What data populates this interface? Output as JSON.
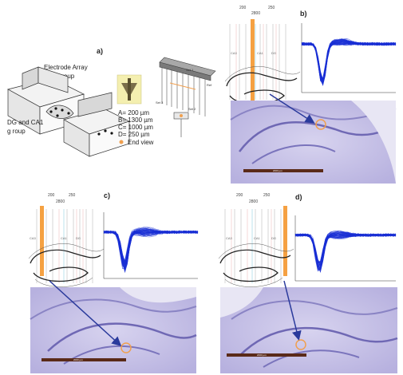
{
  "panels": {
    "a": {
      "label": "a)",
      "group_ca3": [
        "Electrode Array",
        "CA3 group"
      ],
      "group_dg": [
        "DG and CA1",
        "g roup"
      ],
      "legend": [
        "A= 200 µm",
        "B= 1300 µm",
        "C= 1000 µm",
        "D= 250 µm",
        "End view"
      ],
      "array_labels": [
        "Set 1",
        "Set 2",
        "Set 3",
        "Ref"
      ]
    },
    "b": {
      "label": "b)",
      "ruler_top": [
        "200",
        "250"
      ],
      "ruler_mid": "2800",
      "region_labels": [
        "CA3",
        "CA1",
        "DG"
      ],
      "scalebar": "2000 µm"
    },
    "c": {
      "label": "c)",
      "ruler_top": [
        "200",
        "250"
      ],
      "ruler_mid": "2800",
      "region_labels": [
        "CA3",
        "CA1",
        "DG"
      ],
      "scalebar": "2000 µm"
    },
    "d": {
      "label": "d)",
      "ruler_top": [
        "200",
        "250"
      ],
      "ruler_mid": "2800",
      "region_labels": [
        "CA3",
        "CA1",
        "DG"
      ],
      "scalebar": "2000 µm"
    }
  },
  "colors": {
    "waveform": "#1a2fd6",
    "electrode_highlight": "#f5a142",
    "arrow": "#2a3a9c",
    "tissue": "#c9c5e8",
    "tissue_dark": "#8a84c4",
    "scalebar": "#5a2a18",
    "marker": "#f0a050"
  }
}
